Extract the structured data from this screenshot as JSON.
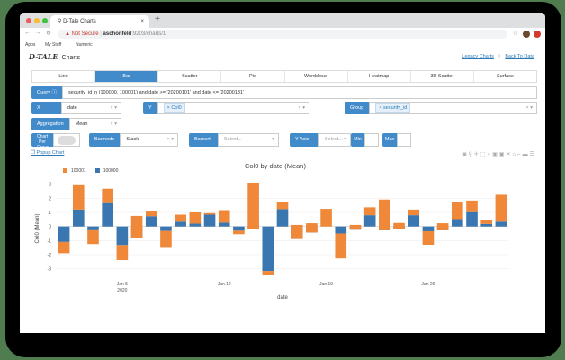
{
  "browser": {
    "tab_title": "D-Tale Charts",
    "security": "Not Secure",
    "url_host": "aschonfeld",
    "url_path": ":9203/charts/1",
    "bookmarks": [
      "Apps",
      "My Stuff",
      "Numeric"
    ]
  },
  "header": {
    "logo": "D-TALE",
    "title": "Charts",
    "legacy_link": "Legacy Charts",
    "separator": "|",
    "back_link": "Back To Data"
  },
  "chart_tabs": [
    {
      "label": "Line"
    },
    {
      "label": "Bar",
      "active": true
    },
    {
      "label": "Scatter"
    },
    {
      "label": "Pie"
    },
    {
      "label": "Wordcloud"
    },
    {
      "label": "Heatmap"
    },
    {
      "label": "3D Scatter"
    },
    {
      "label": "Surface"
    }
  ],
  "query": {
    "label": "Query",
    "value": "security_id in (100000, 100001) and date >= '20200101' and date <= '20200131'"
  },
  "x": {
    "label": "X",
    "value": "date"
  },
  "y": {
    "label": "Y",
    "value": "Col0"
  },
  "group": {
    "label": "Group",
    "value": "security_id"
  },
  "aggregation": {
    "label": "Aggregation",
    "value": "Mean"
  },
  "chart_per_group": {
    "label": "Chart Per Group",
    "enabled": false
  },
  "barmode": {
    "label": "Barmode",
    "value": "Stack"
  },
  "barsort": {
    "label": "Barsort",
    "placeholder": "Select..."
  },
  "yaxis": {
    "label": "Y-Axis",
    "placeholder": "Select...",
    "min_label": "Min",
    "max_label": "Max"
  },
  "popup_label": "Popup Chart",
  "colors": {
    "accent": "#428bca",
    "series_100001": "#f0883a",
    "series_100000": "#3a76b0"
  },
  "chart_data": {
    "type": "bar",
    "barmode": "stack",
    "title": "Col0 by date (Mean)",
    "xlabel": "date",
    "ylabel": "Col0 (Mean)",
    "ylim": [
      -3.6,
      3.3
    ],
    "yticks": [
      -3,
      -2,
      -1,
      0,
      1,
      2,
      3
    ],
    "xticks": [
      {
        "day": 5,
        "label": "Jan 5",
        "sub": "2020"
      },
      {
        "day": 12,
        "label": "Jan 12"
      },
      {
        "day": 19,
        "label": "Jan 19"
      },
      {
        "day": 26,
        "label": "Jan 26"
      }
    ],
    "legend_position": "top-left",
    "grid": true,
    "x": [
      "2020-01-01",
      "2020-01-02",
      "2020-01-03",
      "2020-01-04",
      "2020-01-05",
      "2020-01-06",
      "2020-01-07",
      "2020-01-08",
      "2020-01-09",
      "2020-01-10",
      "2020-01-11",
      "2020-01-12",
      "2020-01-13",
      "2020-01-14",
      "2020-01-15",
      "2020-01-16",
      "2020-01-17",
      "2020-01-18",
      "2020-01-19",
      "2020-01-20",
      "2020-01-21",
      "2020-01-22",
      "2020-01-23",
      "2020-01-24",
      "2020-01-25",
      "2020-01-26",
      "2020-01-27",
      "2020-01-28",
      "2020-01-29",
      "2020-01-30",
      "2020-01-31"
    ],
    "series": [
      {
        "name": "100000",
        "values": [
          -1.1,
          1.2,
          -0.27,
          1.66,
          -1.32,
          -0.82,
          0.73,
          -0.32,
          0.34,
          0.2,
          0.84,
          0.27,
          -0.3,
          -0.2,
          -3.16,
          1.23,
          -0.89,
          -0.43,
          0,
          -0.5,
          -0.23,
          0.8,
          -0.27,
          -0.2,
          0.8,
          -0.34,
          -0.27,
          0.52,
          1.02,
          0.18,
          0.34
        ]
      },
      {
        "name": "100001",
        "values": [
          -0.8,
          1.73,
          -0.98,
          1.02,
          -1.07,
          1.57,
          0.34,
          -1.2,
          0.5,
          0.8,
          0.11,
          0.89,
          -0.25,
          3.31,
          -0.25,
          0.52,
          1.0,
          0.66,
          1.25,
          -1.77,
          0.34,
          0.56,
          2.18,
          0.45,
          0.4,
          -0.96,
          0.5,
          1.23,
          0.82,
          0.27,
          1.91
        ]
      }
    ]
  }
}
